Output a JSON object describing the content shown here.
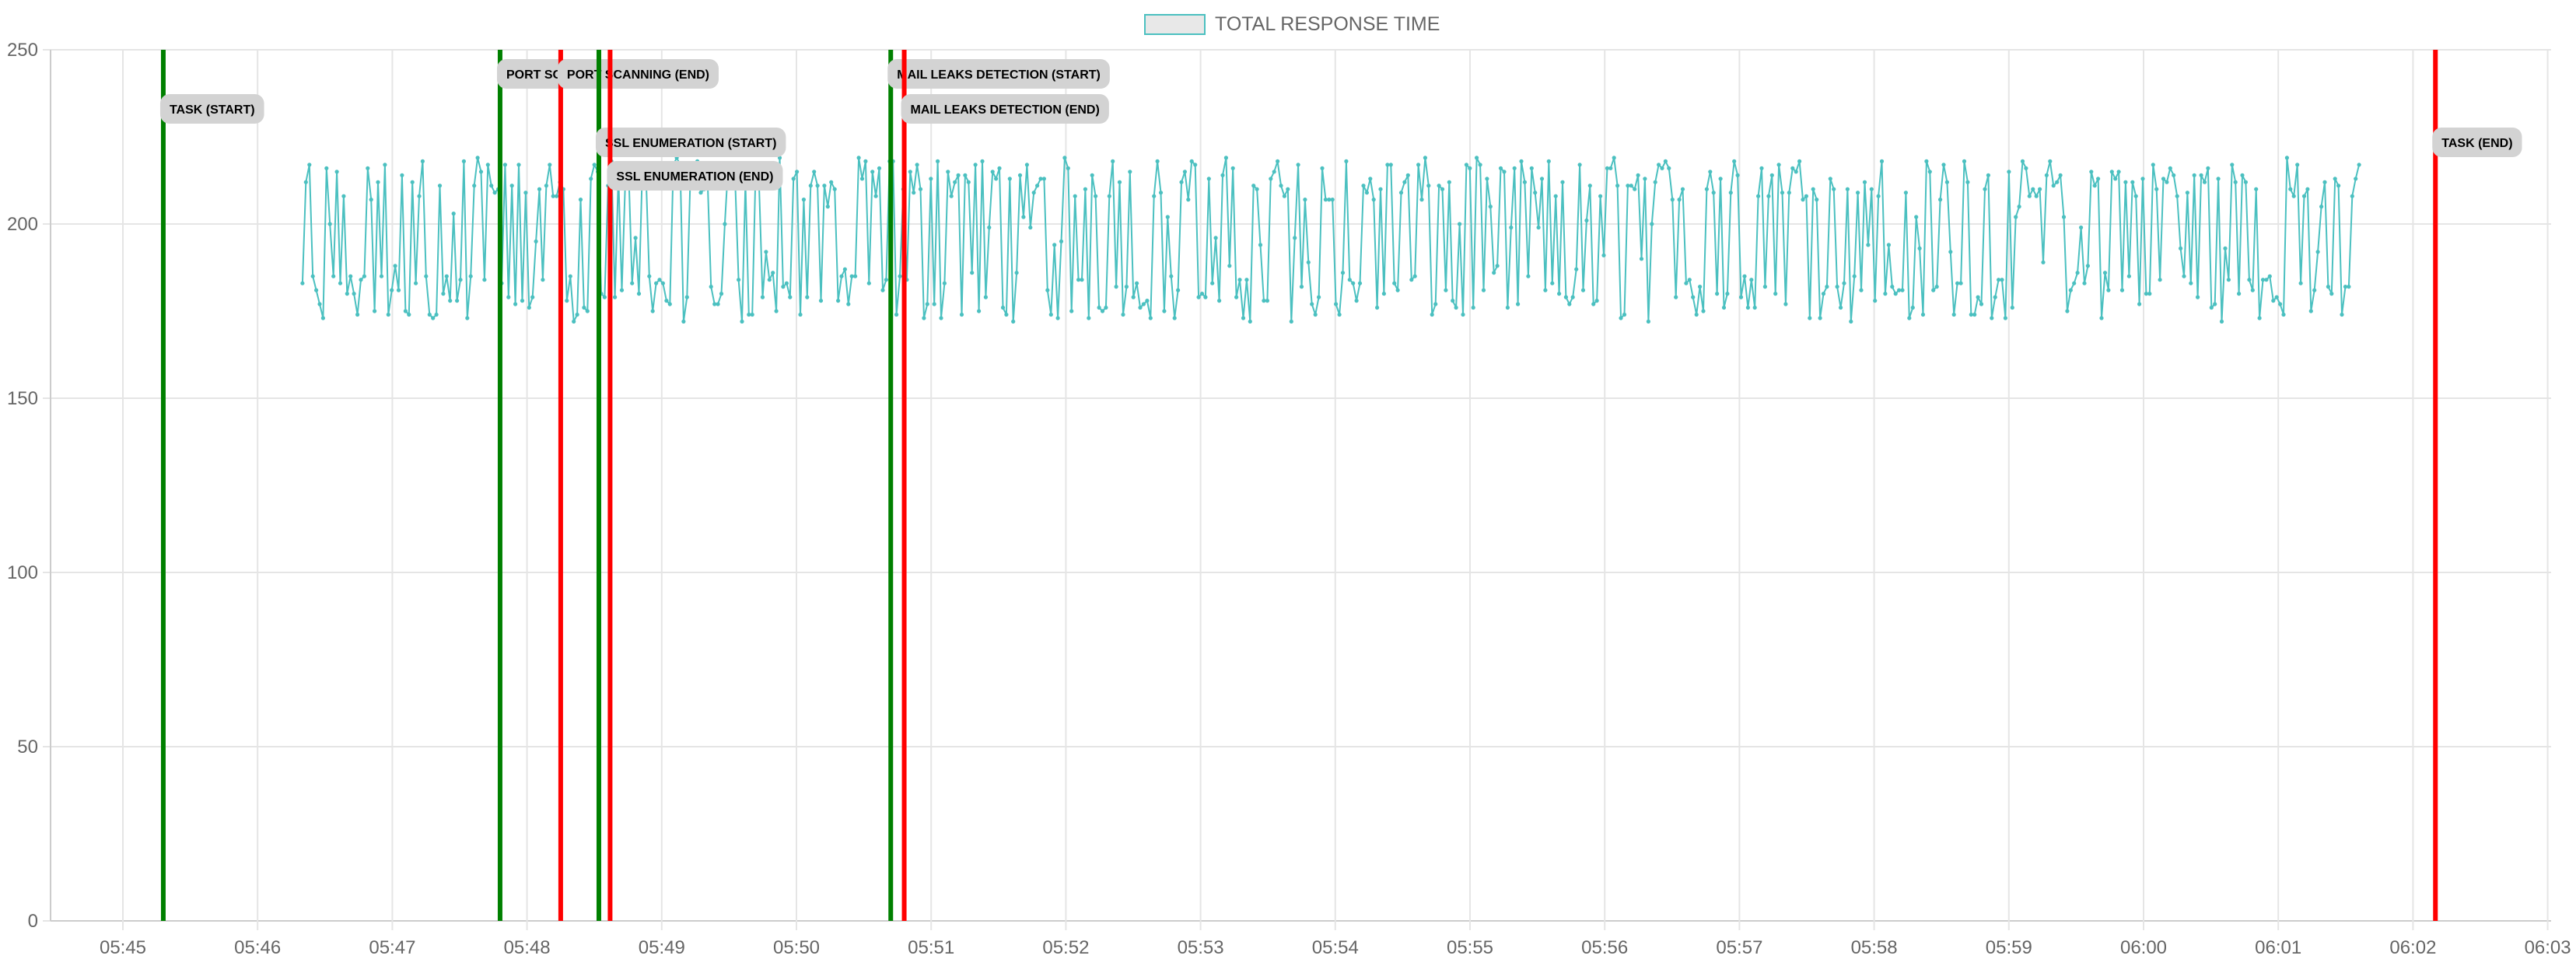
{
  "legend": {
    "label": "TOTAL RESPONSE TIME"
  },
  "colors": {
    "series_line": "#4bc0c0",
    "legend_fill": "#e8e8e8",
    "grid": "#e5e5e5",
    "axis": "#cccccc",
    "start_marker": "#008000",
    "end_marker": "#ff0000",
    "marker_label_bg": "#d3d3d3"
  },
  "chart_data": {
    "type": "line",
    "title": "",
    "xlabel": "",
    "ylabel": "",
    "ylim": [
      0,
      250
    ],
    "grid": true,
    "legend_position": "top-center",
    "x_ticks": [
      "05:45",
      "05:46",
      "05:47",
      "05:48",
      "05:49",
      "05:50",
      "05:51",
      "05:52",
      "05:53",
      "05:54",
      "05:55",
      "05:56",
      "05:57",
      "05:58",
      "05:59",
      "06:00",
      "06:01",
      "06:02",
      "06:03"
    ],
    "y_ticks": [
      0,
      50,
      100,
      150,
      200,
      250
    ],
    "series": [
      {
        "name": "TOTAL RESPONSE TIME",
        "start_time": "05:46:20",
        "end_time": "06:01:36",
        "point_count": 600,
        "value_range": [
          171,
          221
        ],
        "sample_values": [
          183,
          212,
          217,
          185,
          181,
          177,
          173,
          216,
          200,
          185,
          215,
          183,
          208,
          180,
          185,
          180,
          174,
          184,
          185,
          216,
          207,
          175,
          212,
          185,
          217,
          174,
          181,
          188,
          181,
          214,
          175,
          174,
          212,
          183,
          208,
          218,
          185,
          174,
          173,
          174,
          211,
          180,
          185,
          178,
          203,
          178,
          184,
          218,
          173,
          185
        ]
      }
    ],
    "markers": [
      {
        "label": "TASK (START)",
        "time": "05:45:18",
        "kind": "start"
      },
      {
        "label": "PORT SCANNING (START)",
        "time": "05:47:48",
        "kind": "start"
      },
      {
        "label": "PORT SCANNING (END)",
        "time": "05:48:15",
        "kind": "end"
      },
      {
        "label": "SSL ENUMERATION (START)",
        "time": "05:48:32",
        "kind": "start"
      },
      {
        "label": "SSL ENUMERATION (END)",
        "time": "05:48:37",
        "kind": "end"
      },
      {
        "label": "MAIL LEAKS DETECTION (START)",
        "time": "05:50:42",
        "kind": "start"
      },
      {
        "label": "MAIL LEAKS DETECTION (END)",
        "time": "05:50:48",
        "kind": "end"
      },
      {
        "label": "TASK (END)",
        "time": "06:02:10",
        "kind": "end"
      }
    ]
  }
}
